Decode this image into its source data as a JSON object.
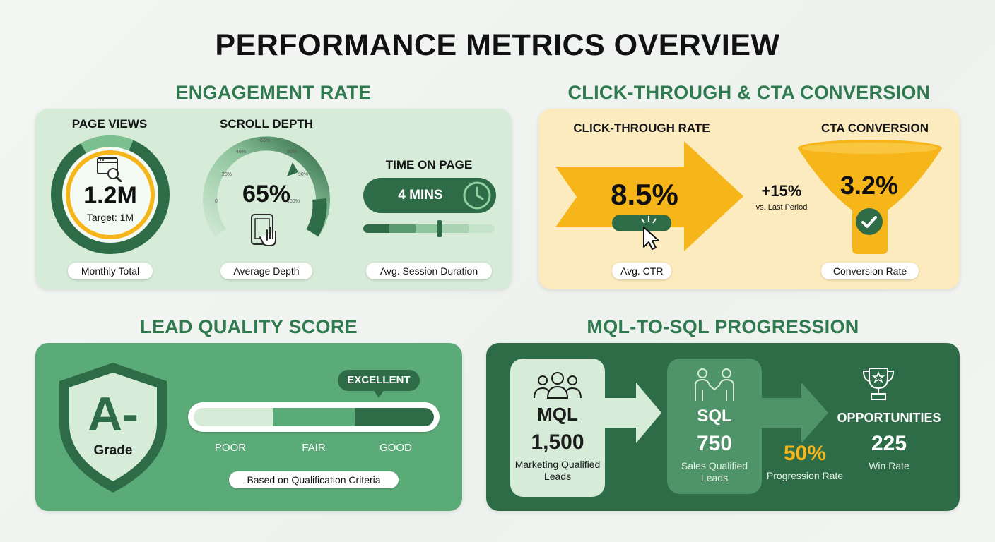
{
  "title": "PERFORMANCE METRICS OVERVIEW",
  "engagement": {
    "title": "ENGAGEMENT RATE",
    "page_views": {
      "label": "PAGE VIEWS",
      "value": "1.2M",
      "target": "Target: 1M",
      "caption": "Monthly Total",
      "progress_fraction": 1.0
    },
    "scroll_depth": {
      "label": "SCROLL DEPTH",
      "value": "65%",
      "ticks": [
        "0",
        "20%",
        "40%",
        "63%",
        "80%",
        "90%",
        "100%"
      ],
      "caption": "Average Depth",
      "level_percent": 65
    },
    "time_on_page": {
      "label": "TIME ON PAGE",
      "value": "4 MINS",
      "caption": "Avg. Session Duration",
      "slider_fraction": 0.6
    }
  },
  "ctr": {
    "title": "CLICK-THROUGH & CTA CONVERSION",
    "click_through": {
      "label": "CLICK-THROUGH RATE",
      "value": "8.5%",
      "caption": "Avg. CTR"
    },
    "change": {
      "value": "+15%",
      "note": "vs. Last Period"
    },
    "cta": {
      "label": "CTA CONVERSION",
      "value": "3.2%",
      "caption": "Conversion Rate"
    }
  },
  "lead": {
    "title": "LEAD QUALITY SCORE",
    "grade": "A-",
    "grade_label": "Grade",
    "badge": "EXCELLENT",
    "scale": [
      "POOR",
      "FAIR",
      "GOOD"
    ],
    "caption": "Based on Qualification Criteria"
  },
  "mql": {
    "title": "MQL-TO-SQL PROGRESSION",
    "mql": {
      "label": "MQL",
      "value": "1,500",
      "desc": "Marketing Qualified Leads"
    },
    "sql": {
      "label": "SQL",
      "value": "750",
      "desc": "Sales Qualified Leads"
    },
    "progression": {
      "value": "50%",
      "desc": "Progression Rate"
    },
    "opportunities": {
      "label": "OPPORTUNITIES",
      "value": "225",
      "desc": "Win Rate"
    }
  },
  "colors": {
    "dark_green": "#2e6b47",
    "mid_green": "#5bab78",
    "light_green": "#d6ecd8",
    "accent_yellow": "#f6b519",
    "section_title_green": "#2f7a4f"
  },
  "icons": [
    "search-page-icon",
    "tablet-touch-icon",
    "clock-icon",
    "cursor-icon",
    "check-icon",
    "people-group-icon",
    "handshake-icon",
    "trophy-icon"
  ]
}
